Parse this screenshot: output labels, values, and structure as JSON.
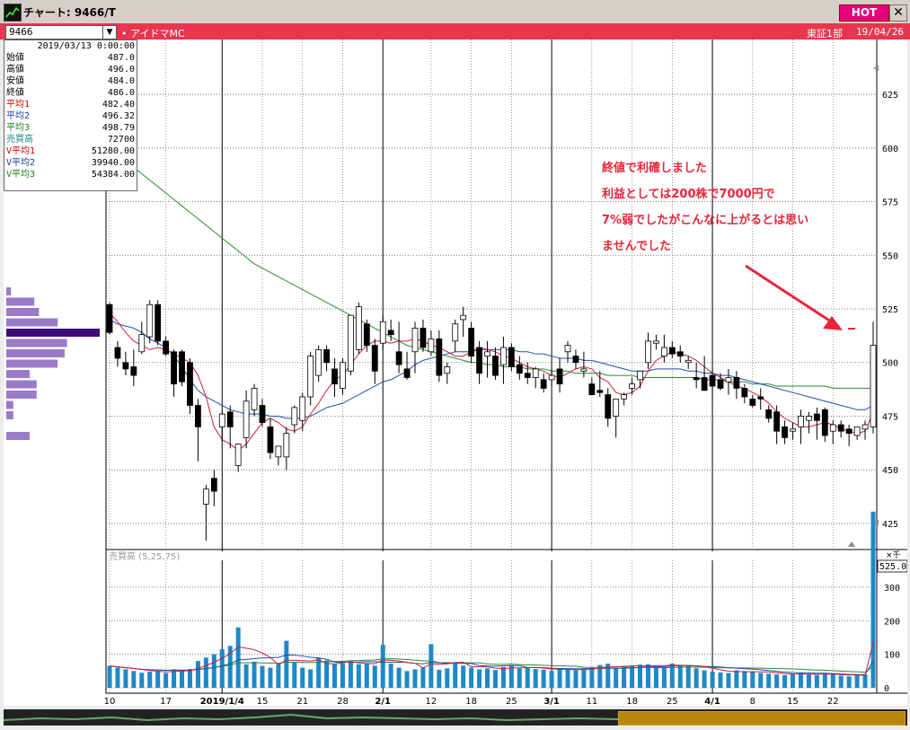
{
  "window": {
    "title": "チャート: 9466/T",
    "hot_label": "HOT",
    "close_label": "✕"
  },
  "symbol": {
    "code": "9466",
    "company": "アイドマMC",
    "market": "東証1部",
    "date": "19/04/26"
  },
  "info_panel": {
    "date": "2019/03/13 0:00:00",
    "rows": [
      {
        "label": "始値",
        "value": "487.0",
        "color": "#000000"
      },
      {
        "label": "高値",
        "value": "496.0",
        "color": "#000000"
      },
      {
        "label": "安値",
        "value": "484.0",
        "color": "#000000"
      },
      {
        "label": "終値",
        "value": "486.0",
        "color": "#000000"
      },
      {
        "label": "平均1",
        "value": "482.40",
        "color": "#cc0000"
      },
      {
        "label": "平均2",
        "value": "496.32",
        "color": "#1a3d9a"
      },
      {
        "label": "平均3",
        "value": "498.79",
        "color": "#1f7a1f"
      },
      {
        "label": "売買高",
        "value": "72700",
        "color": "#1a8a8a"
      },
      {
        "label": "V平均1",
        "value": "51280.00",
        "color": "#cc0000"
      },
      {
        "label": "V平均2",
        "value": "39940.00",
        "color": "#1a3d9a"
      },
      {
        "label": "V平均3",
        "value": "54384.00",
        "color": "#1f7a1f"
      }
    ]
  },
  "annotation": {
    "lines": [
      "終値で利確しました",
      "利益としては200株で7000円で",
      "7%弱でしたがこんなに上がるとは思い",
      "ませんでした"
    ]
  },
  "chart_data": {
    "type": "candlestick",
    "price_axis_ticks": [
      "625",
      "600",
      "575",
      "550",
      "525",
      "500",
      "475",
      "450",
      "425"
    ],
    "volume_label": "売買高 (5,25,75)",
    "volume_unit": "×千",
    "volume_axis_ticks": [
      "300",
      "200",
      "100",
      "0"
    ],
    "volume_max_label": "525.0",
    "x_labels": [
      "10",
      "17",
      "2019/1/4",
      "15",
      "21",
      "28",
      "2/1",
      "12",
      "18",
      "25",
      "3/1",
      "11",
      "18",
      "25",
      "4/1",
      "8",
      "15",
      "22"
    ],
    "bold_labels": [
      "2019/1/4",
      "2/1",
      "3/1",
      "4/1"
    ],
    "ylim": [
      412,
      638
    ],
    "candles": [
      {
        "o": 527,
        "h": 528,
        "l": 513,
        "c": 514
      },
      {
        "o": 507,
        "h": 510,
        "l": 498,
        "c": 502
      },
      {
        "o": 500,
        "h": 505,
        "l": 494,
        "c": 497
      },
      {
        "o": 498,
        "h": 506,
        "l": 489,
        "c": 494
      },
      {
        "o": 505,
        "h": 519,
        "l": 504,
        "c": 513
      },
      {
        "o": 512,
        "h": 529,
        "l": 509,
        "c": 527
      },
      {
        "o": 527,
        "h": 529,
        "l": 508,
        "c": 510
      },
      {
        "o": 510,
        "h": 512,
        "l": 503,
        "c": 504
      },
      {
        "o": 505,
        "h": 506,
        "l": 484,
        "c": 490
      },
      {
        "o": 505,
        "h": 506,
        "l": 489,
        "c": 491
      },
      {
        "o": 500,
        "h": 502,
        "l": 476,
        "c": 480
      },
      {
        "o": 480,
        "h": 483,
        "l": 454,
        "c": 470
      },
      {
        "o": 434,
        "h": 443,
        "l": 417,
        "c": 441
      },
      {
        "o": 446,
        "h": 450,
        "l": 433,
        "c": 440
      },
      {
        "o": 470,
        "h": 477,
        "l": 463,
        "c": 476
      },
      {
        "o": 477,
        "h": 480,
        "l": 460,
        "c": 470
      },
      {
        "o": 452,
        "h": 462,
        "l": 449,
        "c": 462
      },
      {
        "o": 465,
        "h": 487,
        "l": 460,
        "c": 482
      },
      {
        "o": 478,
        "h": 490,
        "l": 475,
        "c": 488
      },
      {
        "o": 480,
        "h": 483,
        "l": 470,
        "c": 472
      },
      {
        "o": 470,
        "h": 474,
        "l": 455,
        "c": 458
      },
      {
        "o": 456,
        "h": 460,
        "l": 452,
        "c": 461
      },
      {
        "o": 456,
        "h": 470,
        "l": 450,
        "c": 467
      },
      {
        "o": 471,
        "h": 480,
        "l": 467,
        "c": 479
      },
      {
        "o": 473,
        "h": 486,
        "l": 468,
        "c": 484
      },
      {
        "o": 484,
        "h": 505,
        "l": 480,
        "c": 503
      },
      {
        "o": 494,
        "h": 508,
        "l": 491,
        "c": 506
      },
      {
        "o": 506,
        "h": 508,
        "l": 496,
        "c": 500
      },
      {
        "o": 497,
        "h": 502,
        "l": 484,
        "c": 490
      },
      {
        "o": 488,
        "h": 502,
        "l": 485,
        "c": 500
      },
      {
        "o": 496,
        "h": 522,
        "l": 494,
        "c": 522
      },
      {
        "o": 506,
        "h": 528,
        "l": 504,
        "c": 526
      },
      {
        "o": 518,
        "h": 520,
        "l": 505,
        "c": 508
      },
      {
        "o": 508,
        "h": 511,
        "l": 490,
        "c": 496
      },
      {
        "o": 509,
        "h": 522,
        "l": 506,
        "c": 519
      },
      {
        "o": 515,
        "h": 520,
        "l": 510,
        "c": 513
      },
      {
        "o": 505,
        "h": 519,
        "l": 495,
        "c": 499
      },
      {
        "o": 497,
        "h": 505,
        "l": 492,
        "c": 493
      },
      {
        "o": 505,
        "h": 519,
        "l": 495,
        "c": 516
      },
      {
        "o": 516,
        "h": 520,
        "l": 505,
        "c": 507
      },
      {
        "o": 505,
        "h": 515,
        "l": 503,
        "c": 511
      },
      {
        "o": 511,
        "h": 515,
        "l": 491,
        "c": 494
      },
      {
        "o": 495,
        "h": 500,
        "l": 490,
        "c": 498
      },
      {
        "o": 510,
        "h": 520,
        "l": 505,
        "c": 518
      },
      {
        "o": 520,
        "h": 526,
        "l": 512,
        "c": 522
      },
      {
        "o": 516,
        "h": 519,
        "l": 500,
        "c": 503
      },
      {
        "o": 507,
        "h": 510,
        "l": 490,
        "c": 495
      },
      {
        "o": 503,
        "h": 510,
        "l": 493,
        "c": 505
      },
      {
        "o": 503,
        "h": 507,
        "l": 492,
        "c": 494
      },
      {
        "o": 499,
        "h": 512,
        "l": 490,
        "c": 507
      },
      {
        "o": 507,
        "h": 509,
        "l": 496,
        "c": 498
      },
      {
        "o": 499,
        "h": 503,
        "l": 492,
        "c": 495
      },
      {
        "o": 495,
        "h": 500,
        "l": 490,
        "c": 493
      },
      {
        "o": 493,
        "h": 498,
        "l": 488,
        "c": 497
      },
      {
        "o": 492,
        "h": 495,
        "l": 486,
        "c": 488
      },
      {
        "o": 492,
        "h": 497,
        "l": 489,
        "c": 494
      },
      {
        "o": 497,
        "h": 502,
        "l": 486,
        "c": 490
      },
      {
        "o": 505,
        "h": 510,
        "l": 500,
        "c": 508
      },
      {
        "o": 503,
        "h": 506,
        "l": 497,
        "c": 500
      },
      {
        "o": 496,
        "h": 505,
        "l": 493,
        "c": 497
      },
      {
        "o": 490,
        "h": 493,
        "l": 486,
        "c": 485
      },
      {
        "o": 487,
        "h": 496,
        "l": 484,
        "c": 486
      },
      {
        "o": 485,
        "h": 488,
        "l": 470,
        "c": 474
      },
      {
        "o": 475,
        "h": 482,
        "l": 465,
        "c": 483
      },
      {
        "o": 483,
        "h": 486,
        "l": 480,
        "c": 485
      },
      {
        "o": 488,
        "h": 493,
        "l": 485,
        "c": 490
      },
      {
        "o": 492,
        "h": 496,
        "l": 488,
        "c": 496
      },
      {
        "o": 500,
        "h": 514,
        "l": 497,
        "c": 510
      },
      {
        "o": 509,
        "h": 513,
        "l": 506,
        "c": 510
      },
      {
        "o": 503,
        "h": 513,
        "l": 500,
        "c": 507
      },
      {
        "o": 507,
        "h": 510,
        "l": 502,
        "c": 504
      },
      {
        "o": 505,
        "h": 508,
        "l": 500,
        "c": 503
      },
      {
        "o": 500,
        "h": 503,
        "l": 497,
        "c": 501
      },
      {
        "o": 493,
        "h": 500,
        "l": 488,
        "c": 492
      },
      {
        "o": 493,
        "h": 503,
        "l": 487,
        "c": 487
      },
      {
        "o": 494,
        "h": 497,
        "l": 483,
        "c": 489
      },
      {
        "o": 492,
        "h": 495,
        "l": 487,
        "c": 488
      },
      {
        "o": 491,
        "h": 497,
        "l": 485,
        "c": 493
      },
      {
        "o": 493,
        "h": 496,
        "l": 483,
        "c": 488
      },
      {
        "o": 488,
        "h": 490,
        "l": 481,
        "c": 484
      },
      {
        "o": 483,
        "h": 485,
        "l": 479,
        "c": 480
      },
      {
        "o": 484,
        "h": 488,
        "l": 478,
        "c": 483
      },
      {
        "o": 478,
        "h": 480,
        "l": 472,
        "c": 474
      },
      {
        "o": 477,
        "h": 480,
        "l": 462,
        "c": 468
      },
      {
        "o": 470,
        "h": 473,
        "l": 462,
        "c": 465
      },
      {
        "o": 468,
        "h": 472,
        "l": 464,
        "c": 469
      },
      {
        "o": 470,
        "h": 478,
        "l": 462,
        "c": 475
      },
      {
        "o": 473,
        "h": 477,
        "l": 467,
        "c": 475
      },
      {
        "o": 476,
        "h": 479,
        "l": 464,
        "c": 473
      },
      {
        "o": 478,
        "h": 479,
        "l": 463,
        "c": 466
      },
      {
        "o": 468,
        "h": 473,
        "l": 462,
        "c": 471
      },
      {
        "o": 471,
        "h": 473,
        "l": 465,
        "c": 468
      },
      {
        "o": 469,
        "h": 471,
        "l": 461,
        "c": 467
      },
      {
        "o": 466,
        "h": 470,
        "l": 464,
        "c": 470
      },
      {
        "o": 469,
        "h": 473,
        "l": 464,
        "c": 471
      },
      {
        "o": 470,
        "h": 519,
        "l": 467,
        "c": 508
      }
    ],
    "ma1": [
      523,
      519,
      514,
      510,
      508,
      506,
      507,
      506,
      504,
      502,
      500,
      494,
      484,
      470,
      464,
      462,
      459,
      462,
      467,
      472,
      474,
      472,
      469,
      468,
      470,
      476,
      481,
      487,
      492,
      494,
      499,
      504,
      508,
      510,
      510,
      509,
      510,
      510,
      511,
      510,
      508,
      507,
      505,
      503,
      503,
      505,
      507,
      506,
      505,
      503,
      502,
      500,
      498,
      497,
      496,
      494,
      493,
      495,
      497,
      498,
      497,
      493,
      491,
      486,
      485,
      486,
      489,
      496,
      501,
      503,
      505,
      504,
      503,
      501,
      498,
      495,
      493,
      491,
      489,
      488,
      486,
      484,
      481,
      477,
      474,
      472,
      470,
      470,
      471,
      472,
      471,
      469,
      468,
      467,
      468,
      477
    ],
    "ma2": [
      520,
      518,
      517,
      516,
      514,
      511,
      509,
      507,
      503,
      498,
      492,
      487,
      484,
      482,
      480,
      478,
      477,
      476,
      476,
      476,
      475,
      475,
      474,
      474,
      474,
      475,
      477,
      479,
      480,
      481,
      483,
      485,
      487,
      489,
      491,
      492,
      494,
      496,
      499,
      501,
      502,
      503,
      504,
      505,
      505,
      505,
      506,
      506,
      506,
      506,
      506,
      505,
      505,
      504,
      504,
      503,
      502,
      502,
      502,
      501,
      501,
      500,
      499,
      498,
      497,
      496,
      496,
      496,
      497,
      497,
      497,
      497,
      496,
      496,
      495,
      495,
      494,
      494,
      493,
      492,
      491,
      490,
      489,
      488,
      487,
      486,
      485,
      484,
      483,
      482,
      481,
      480,
      479,
      478,
      478,
      480
    ],
    "ma3": [
      600,
      597,
      594,
      591,
      588,
      585,
      582,
      579,
      576,
      573,
      570,
      567,
      564,
      561,
      558,
      555,
      552,
      549,
      546,
      544,
      542,
      540,
      538,
      536,
      534,
      532,
      530,
      528,
      526,
      524,
      522,
      520,
      518,
      516,
      514,
      512,
      510,
      508,
      507,
      506,
      505,
      504,
      503,
      502,
      501,
      500,
      500,
      499,
      499,
      498,
      498,
      498,
      497,
      497,
      497,
      496,
      496,
      496,
      495,
      495,
      495,
      495,
      494,
      494,
      494,
      494,
      493,
      493,
      493,
      493,
      493,
      493,
      493,
      493,
      492,
      492,
      492,
      491,
      491,
      491,
      490,
      490,
      490,
      489,
      489,
      489,
      489,
      489,
      489,
      489,
      488,
      488,
      488,
      488,
      488,
      488
    ],
    "volume": [
      65,
      60,
      55,
      50,
      45,
      48,
      50,
      44,
      55,
      52,
      56,
      80,
      90,
      100,
      115,
      125,
      180,
      70,
      78,
      65,
      60,
      70,
      140,
      75,
      60,
      55,
      90,
      82,
      70,
      72,
      78,
      70,
      73,
      66,
      128,
      72,
      60,
      50,
      55,
      60,
      130,
      54,
      58,
      74,
      66,
      60,
      55,
      58,
      53,
      62,
      66,
      58,
      61,
      56,
      54,
      50,
      58,
      55,
      52,
      56,
      60,
      68,
      72,
      58,
      62,
      66,
      69,
      70,
      64,
      62,
      72,
      68,
      66,
      58,
      52,
      48,
      46,
      44,
      52,
      50,
      48,
      44,
      42,
      40,
      38,
      42,
      44,
      40,
      38,
      42,
      40,
      36,
      34,
      38,
      40,
      525
    ],
    "vol_ylim": [
      0,
      380
    ],
    "volume_profile": [
      2,
      12,
      14,
      22,
      40,
      26,
      25,
      22,
      10,
      13,
      13,
      3,
      3,
      0,
      10
    ]
  }
}
